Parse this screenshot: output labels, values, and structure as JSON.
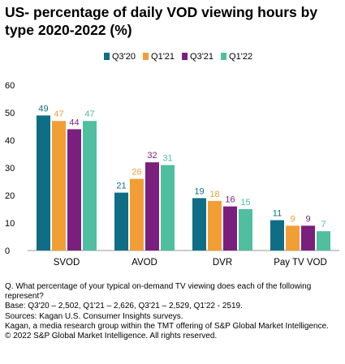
{
  "chart_data": {
    "type": "bar",
    "title": "US- percentage of daily VOD viewing hours by type 2020-2022 (%)",
    "categories": [
      "SVOD",
      "AVOD",
      "DVR",
      "Pay TV VOD"
    ],
    "series": [
      {
        "name": "Q3'20",
        "color": "#0f6e85",
        "values": [
          49,
          21,
          19,
          11
        ]
      },
      {
        "name": "Q1'21",
        "color": "#f29e36",
        "values": [
          47,
          26,
          18,
          9
        ]
      },
      {
        "name": "Q3'21",
        "color": "#7a1f7e",
        "values": [
          44,
          32,
          16,
          9
        ]
      },
      {
        "name": "Q1'22",
        "color": "#4fbf9f",
        "values": [
          47,
          31,
          15,
          7
        ]
      }
    ],
    "ylim": [
      0,
      60
    ],
    "yticks": [
      "0",
      "10",
      "20",
      "30",
      "40",
      "50",
      "60"
    ],
    "grid": false,
    "legend": "top-right"
  },
  "notes": [
    "Q.  What percentage of your typical on-demand TV viewing does each of the following represent?",
    "Base: Q3'20 – 2,502, Q1'21 – 2,626, Q3'21 – 2,529, Q1'22 - 2519.",
    "Sources: Kagan U.S. Consumer Insights surveys.",
    "Kagan, a media research group within the TMT offering of S&P Global Market Intelligence.",
    "© 2022 S&P Global Market Intelligence.  All rights reserved."
  ]
}
